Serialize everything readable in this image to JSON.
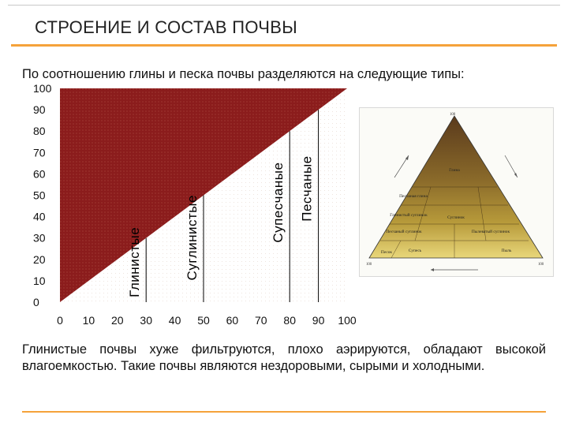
{
  "title": "СТРОЕНИЕ И СОСТАВ ПОЧВЫ",
  "intro": "По соотношению глины и песка почвы разделяются на следующие типы:",
  "chart_data": {
    "type": "area",
    "x_ticks": [
      "0",
      "10",
      "20",
      "30",
      "40",
      "50",
      "60",
      "70",
      "80",
      "90",
      "100"
    ],
    "y_ticks": [
      "0",
      "10",
      "20",
      "30",
      "40",
      "50",
      "60",
      "70",
      "80",
      "90",
      "100"
    ],
    "xlim": [
      0,
      100
    ],
    "ylim": [
      0,
      100
    ],
    "diagonal": [
      [
        0,
        0
      ],
      [
        100,
        100
      ]
    ],
    "zones": [
      {
        "name": "Глинистые",
        "boundary_x": 30
      },
      {
        "name": "Суглинистые",
        "boundary_x": 50
      },
      {
        "name": "Супесчаные",
        "boundary_x": 80
      },
      {
        "name": "Песчаные",
        "boundary_x": 90
      }
    ],
    "colors": {
      "clay_fill": "#8b1c1c",
      "sand_fill": "#ffffff"
    }
  },
  "texture_triangle": {
    "corner_labels": [
      "100"
    ],
    "zones": [
      "Глина",
      "Песчаная глина",
      "Суглинок",
      "Глинистый суглинок",
      "Песчаный суглинок",
      "Супесь",
      "Песок",
      "Пылеватый суглинок",
      "Пыль"
    ]
  },
  "conclusion": "Глинистые почвы хуже фильтруются, плохо аэрируются, обладают высокой влагоемкостью. Такие почвы являются нездоровыми, сырыми и холодными."
}
